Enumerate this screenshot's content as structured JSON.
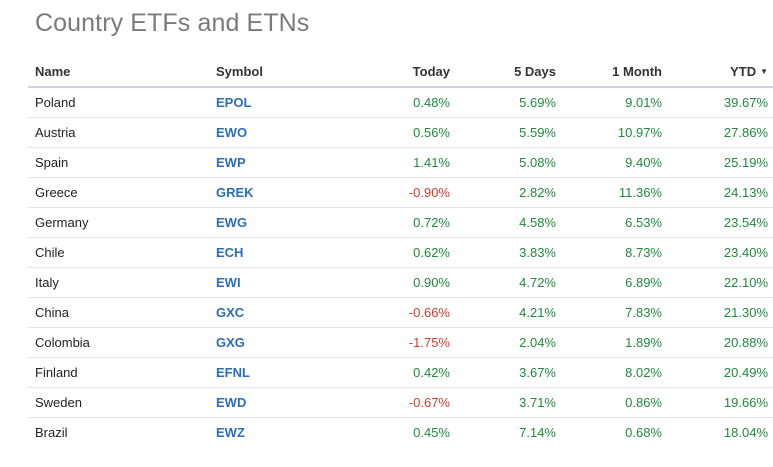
{
  "page": {
    "title": "Country ETFs and ETNs"
  },
  "colors": {
    "positive": "#1f8a3c",
    "negative": "#d33a2c",
    "link": "#2a6ebb"
  },
  "table": {
    "headers": {
      "name": "Name",
      "symbol": "Symbol",
      "today": "Today",
      "five_days": "5 Days",
      "one_month": "1 Month",
      "ytd": "YTD"
    },
    "sort_icon": "caret-down-icon",
    "rows": [
      {
        "name": "Poland",
        "symbol": "EPOL",
        "today": "0.48%",
        "five_days": "5.69%",
        "one_month": "9.01%",
        "ytd": "39.67%"
      },
      {
        "name": "Austria",
        "symbol": "EWO",
        "today": "0.56%",
        "five_days": "5.59%",
        "one_month": "10.97%",
        "ytd": "27.86%"
      },
      {
        "name": "Spain",
        "symbol": "EWP",
        "today": "1.41%",
        "five_days": "5.08%",
        "one_month": "9.40%",
        "ytd": "25.19%"
      },
      {
        "name": "Greece",
        "symbol": "GREK",
        "today": "-0.90%",
        "five_days": "2.82%",
        "one_month": "11.36%",
        "ytd": "24.13%"
      },
      {
        "name": "Germany",
        "symbol": "EWG",
        "today": "0.72%",
        "five_days": "4.58%",
        "one_month": "6.53%",
        "ytd": "23.54%"
      },
      {
        "name": "Chile",
        "symbol": "ECH",
        "today": "0.62%",
        "five_days": "3.83%",
        "one_month": "8.73%",
        "ytd": "23.40%"
      },
      {
        "name": "Italy",
        "symbol": "EWI",
        "today": "0.90%",
        "five_days": "4.72%",
        "one_month": "6.89%",
        "ytd": "22.10%"
      },
      {
        "name": "China",
        "symbol": "GXC",
        "today": "-0.66%",
        "five_days": "4.21%",
        "one_month": "7.83%",
        "ytd": "21.30%"
      },
      {
        "name": "Colombia",
        "symbol": "GXG",
        "today": "-1.75%",
        "five_days": "2.04%",
        "one_month": "1.89%",
        "ytd": "20.88%"
      },
      {
        "name": "Finland",
        "symbol": "EFNL",
        "today": "0.42%",
        "five_days": "3.67%",
        "one_month": "8.02%",
        "ytd": "20.49%"
      },
      {
        "name": "Sweden",
        "symbol": "EWD",
        "today": "-0.67%",
        "five_days": "3.71%",
        "one_month": "0.86%",
        "ytd": "19.66%"
      },
      {
        "name": "Brazil",
        "symbol": "EWZ",
        "today": "0.45%",
        "five_days": "7.14%",
        "one_month": "0.68%",
        "ytd": "18.04%"
      }
    ]
  }
}
